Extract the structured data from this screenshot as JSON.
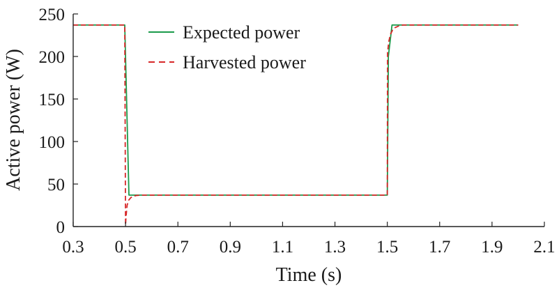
{
  "chart_data": {
    "type": "line",
    "title": "",
    "xlabel": "Time (s)",
    "ylabel": "Active power (W)",
    "xlim": [
      0.3,
      2.1
    ],
    "ylim": [
      0,
      250
    ],
    "xticks": [
      "0.3",
      "0.5",
      "0.7",
      "0.9",
      "1.1",
      "1.3",
      "1.5",
      "1.7",
      "1.9",
      "2.1"
    ],
    "yticks": [
      "0",
      "50",
      "100",
      "150",
      "200",
      "250"
    ],
    "grid": false,
    "legend_position": "top-center",
    "series": [
      {
        "name": "Expected power",
        "color": "#1a9a4a",
        "style": "solid",
        "x": [
          0.3,
          0.497,
          0.513,
          1.5,
          1.504,
          1.518,
          2.0
        ],
        "y": [
          237,
          237,
          37,
          37,
          200,
          237,
          237
        ]
      },
      {
        "name": "Harvested power",
        "color": "#d62728",
        "style": "dashed",
        "x": [
          0.3,
          0.497,
          0.5,
          0.502,
          0.506,
          0.512,
          0.52,
          0.53,
          0.54,
          0.56,
          1.5,
          1.501,
          1.506,
          1.512,
          1.52,
          1.53,
          1.545,
          1.56,
          2.0
        ],
        "y": [
          237,
          237,
          2,
          12,
          25,
          31,
          34,
          35.5,
          36.5,
          37,
          37,
          205,
          218,
          226,
          231,
          234,
          236,
          237,
          237
        ]
      }
    ]
  }
}
